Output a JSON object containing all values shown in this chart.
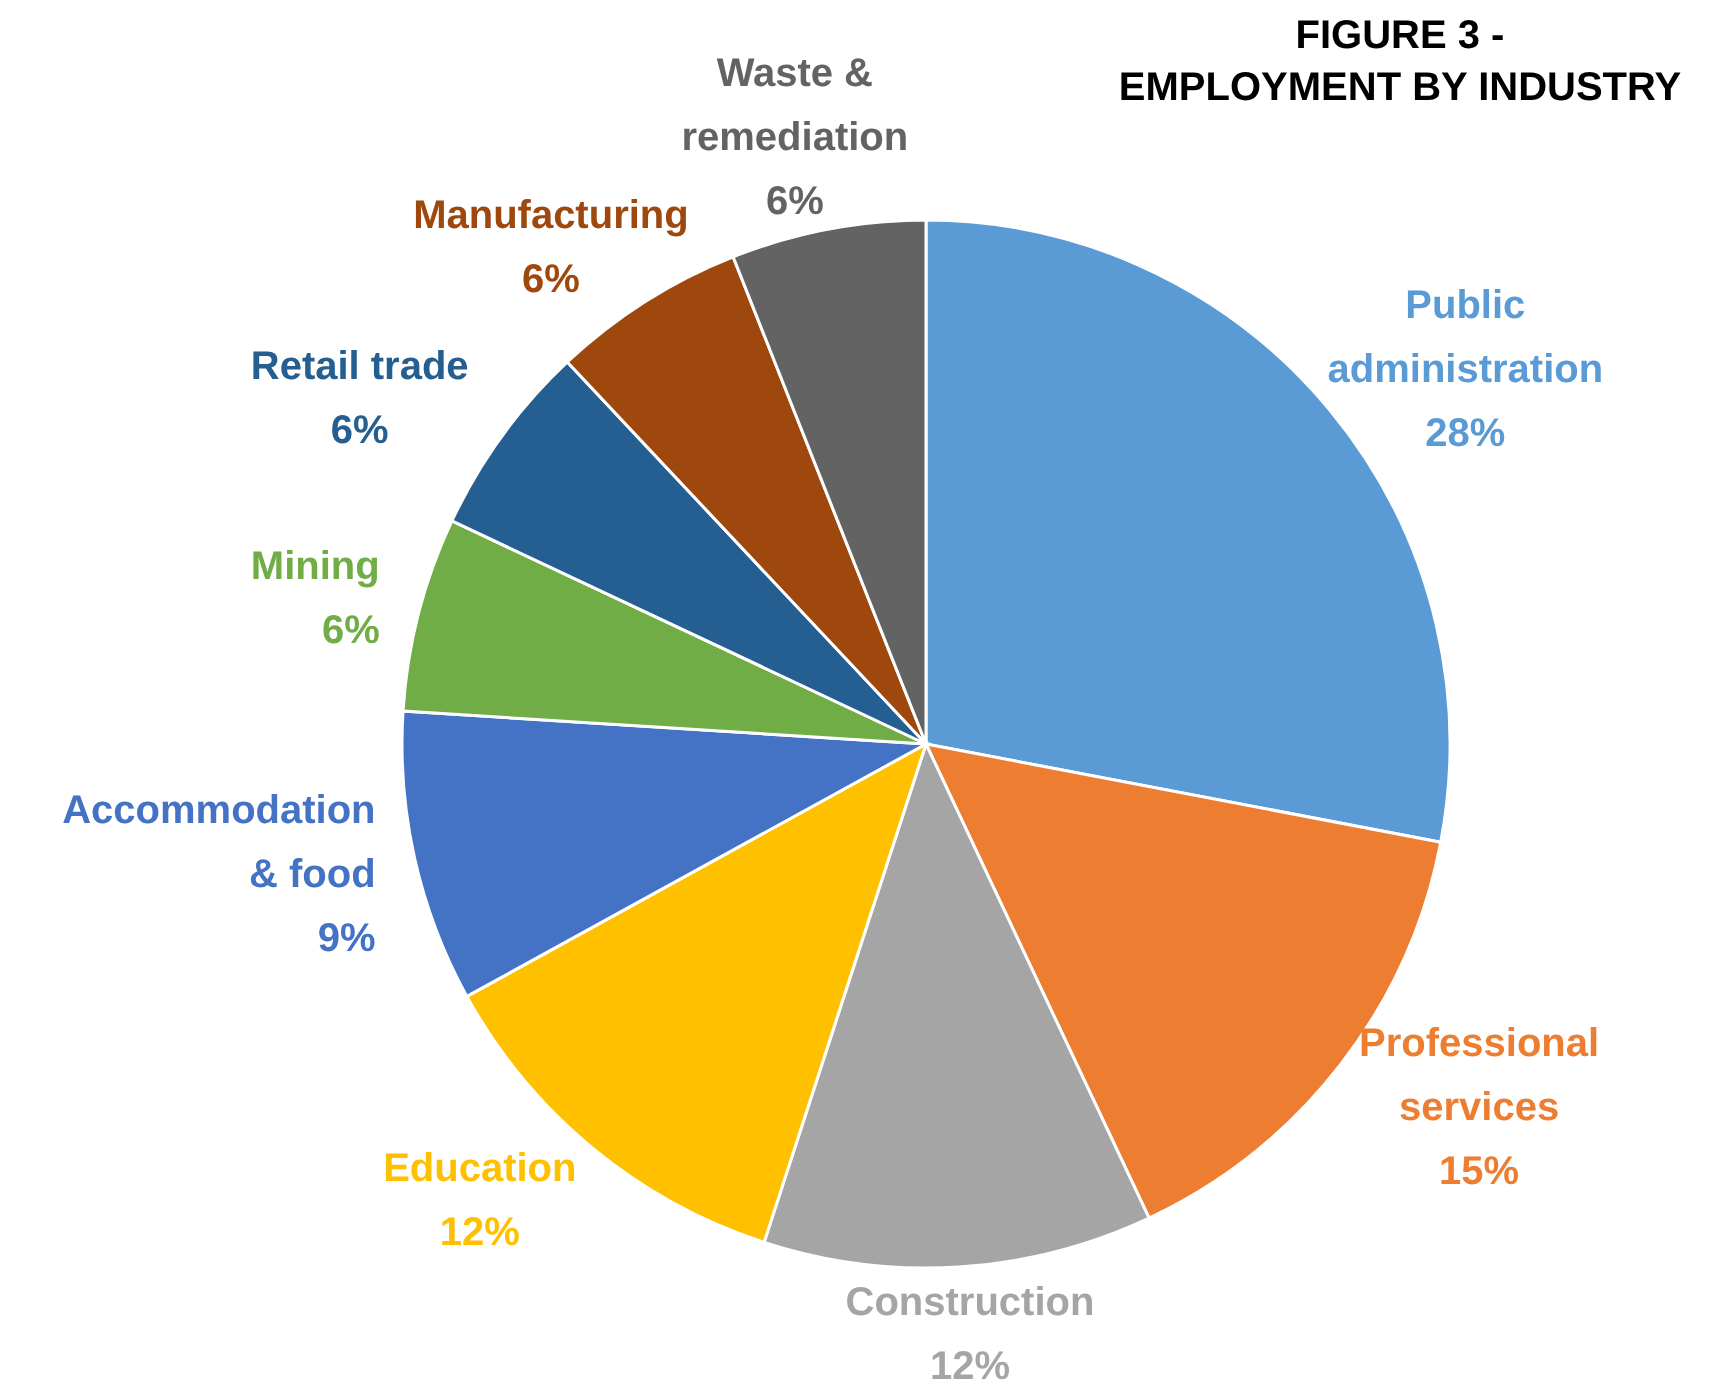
{
  "chart_data": {
    "type": "pie",
    "title": "FIGURE 3 - EMPLOYMENT BY INDUSTRY",
    "categories": [
      "Public administration",
      "Professional services",
      "Construction",
      "Education",
      "Accommodation & food",
      "Mining",
      "Retail trade",
      "Manufacturing",
      "Waste & remediation"
    ],
    "values": [
      28,
      15,
      12,
      12,
      9,
      6,
      6,
      6,
      6
    ],
    "colors": [
      "#5b9bd5",
      "#ed7d31",
      "#a5a5a5",
      "#ffc000",
      "#4472c4",
      "#70ad47",
      "#255e91",
      "#9e480e",
      "#636363"
    ],
    "value_labels": [
      "28%",
      "15%",
      "12%",
      "12%",
      "9%",
      "6%",
      "6%",
      "6%",
      "6%"
    ]
  }
}
